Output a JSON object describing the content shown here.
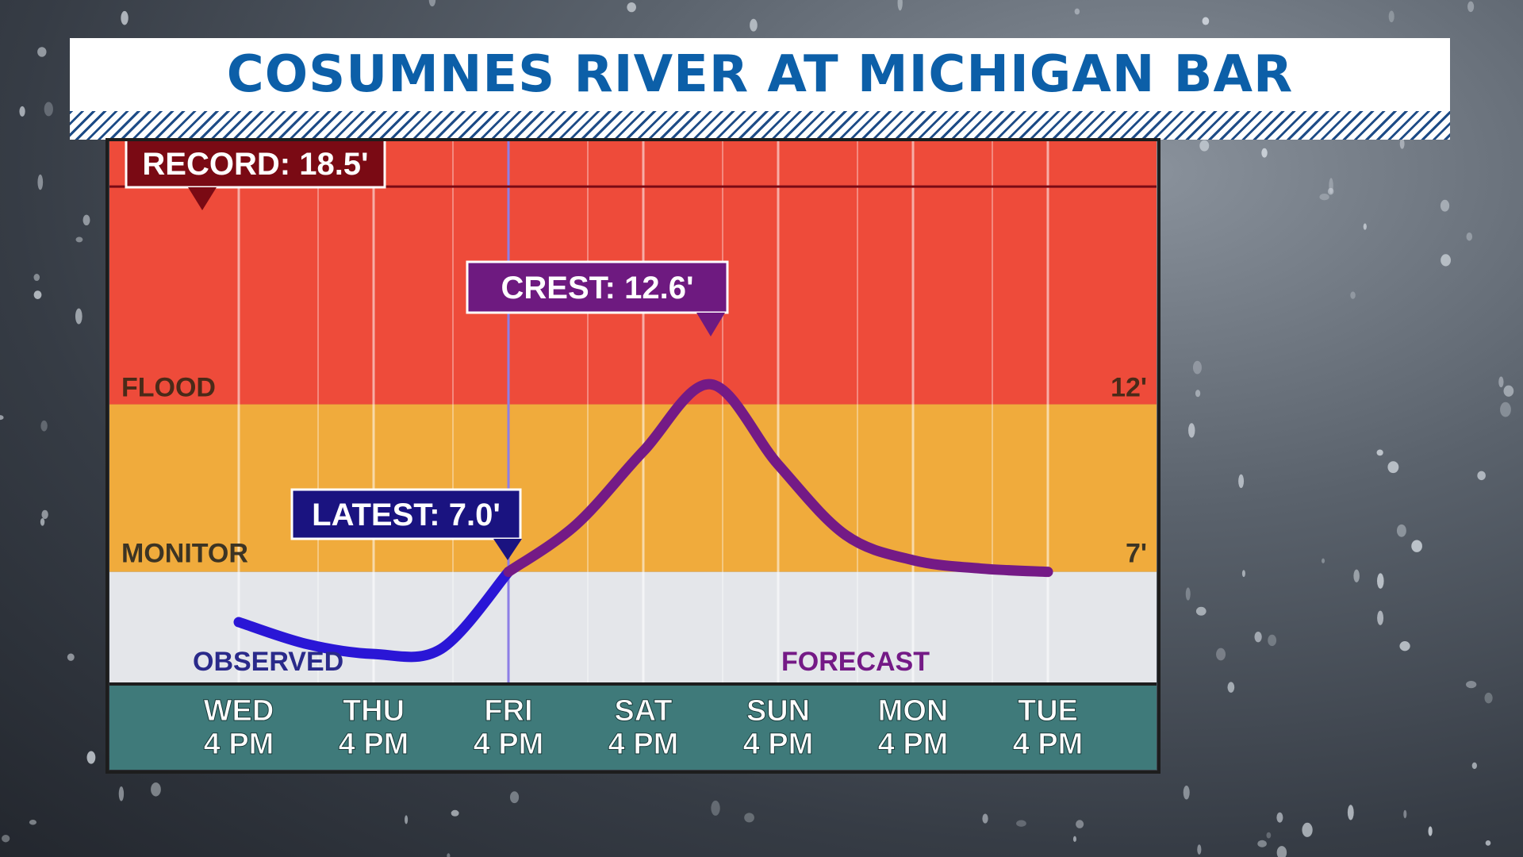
{
  "title": "COSUMNES RIVER AT MICHIGAN BAR",
  "chart_data": {
    "type": "line",
    "title": "COSUMNES RIVER AT MICHIGAN BAR",
    "x_ticks": [
      {
        "day": "WED",
        "time": "4 PM"
      },
      {
        "day": "THU",
        "time": "4 PM"
      },
      {
        "day": "FRI",
        "time": "4 PM"
      },
      {
        "day": "SAT",
        "time": "4 PM"
      },
      {
        "day": "SUN",
        "time": "4 PM"
      },
      {
        "day": "MON",
        "time": "4 PM"
      },
      {
        "day": "TUE",
        "time": "4 PM"
      }
    ],
    "y_range": [
      3.7,
      19.9
    ],
    "stages": [
      {
        "label": "FLOOD",
        "min": 12,
        "max": 19.9,
        "color": "#ee4b3a"
      },
      {
        "label": "MONITOR",
        "min": 7,
        "max": 12,
        "color": "#f0ab3c"
      },
      {
        "label": "",
        "min": 3.7,
        "max": 7,
        "color": "#e4e6ea"
      }
    ],
    "stage_labels": {
      "flood": "FLOOD",
      "monitor": "MONITOR",
      "flood_value": "12'",
      "monitor_value": "7'"
    },
    "series": [
      {
        "name": "OBSERVED",
        "color": "#2a16d6",
        "points": [
          [
            0.0,
            5.5
          ],
          [
            0.5,
            4.85
          ],
          [
            1.0,
            4.55
          ],
          [
            1.5,
            4.7
          ],
          [
            2.0,
            7.0
          ]
        ]
      },
      {
        "name": "FORECAST",
        "color": "#741a86",
        "points": [
          [
            2.0,
            7.0
          ],
          [
            2.5,
            8.4
          ],
          [
            3.0,
            10.6
          ],
          [
            3.5,
            12.6
          ],
          [
            4.0,
            10.2
          ],
          [
            4.5,
            8.1
          ],
          [
            5.0,
            7.35
          ],
          [
            5.5,
            7.1
          ],
          [
            6.0,
            7.0
          ]
        ]
      }
    ],
    "current_divider_x": 2.0,
    "annotations": [
      {
        "label": "RECORD: 18.5'",
        "x": 0.3,
        "y": 18.5,
        "kind": "record",
        "color": "#7a0a14"
      },
      {
        "label": "CREST: 12.6'",
        "x": 3.5,
        "y": 12.6,
        "kind": "crest",
        "color": "#6e1a80"
      },
      {
        "label": "LATEST: 7.0'",
        "x": 2.0,
        "y": 7.0,
        "kind": "latest",
        "color": "#1a1380"
      }
    ]
  }
}
